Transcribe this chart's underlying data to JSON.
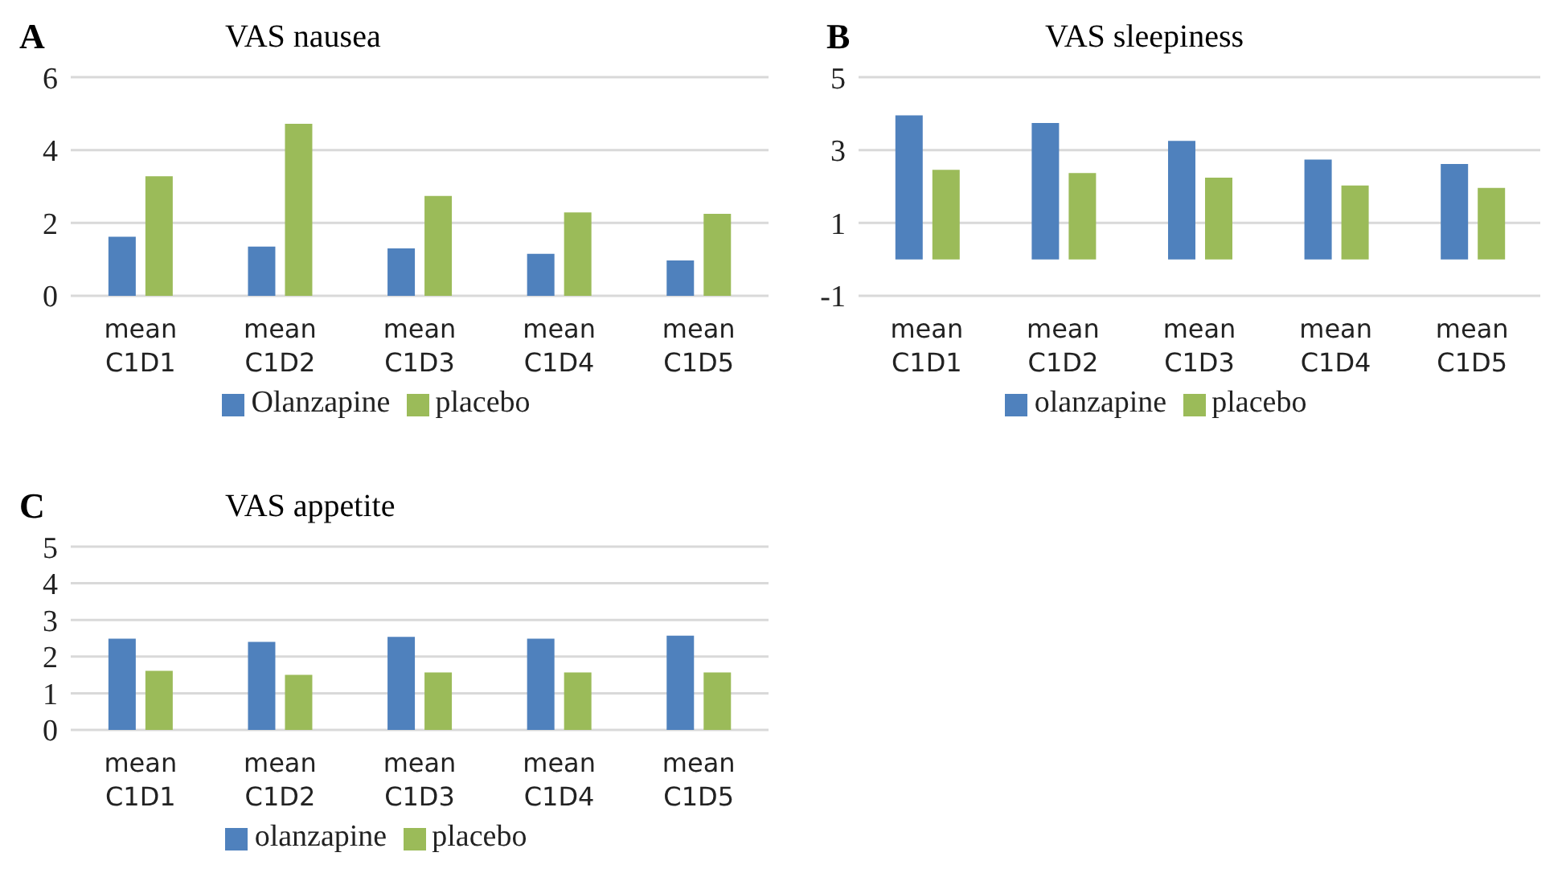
{
  "chart_data": [
    {
      "type": "bar",
      "title": "VAS nausea",
      "annotations": [
        "A"
      ],
      "categories": [
        "mean C1D1",
        "mean C1D2",
        "mean C1D3",
        "mean C1D4",
        "mean C1D5"
      ],
      "series": [
        {
          "name": "Olanzapine",
          "color": "#4f81bd",
          "values": [
            1.62,
            1.35,
            1.3,
            1.15,
            0.97
          ]
        },
        {
          "name": "placebo",
          "color": "#9bbb59",
          "values": [
            3.28,
            4.72,
            2.74,
            2.29,
            2.25
          ]
        }
      ],
      "ylim": [
        0,
        6
      ],
      "yticks": [
        0,
        2,
        4,
        6
      ],
      "grid": "y",
      "legend": "bottom"
    },
    {
      "type": "bar",
      "title": "VAS sleepiness",
      "annotations": [
        "B"
      ],
      "categories": [
        "mean C1D1",
        "mean C1D2",
        "mean C1D3",
        "mean C1D4",
        "mean C1D5"
      ],
      "series": [
        {
          "name": "olanzapine",
          "color": "#4f81bd",
          "values": [
            3.95,
            3.74,
            3.25,
            2.74,
            2.62
          ]
        },
        {
          "name": "placebo",
          "color": "#9bbb59",
          "values": [
            2.46,
            2.37,
            2.24,
            2.03,
            1.96
          ]
        }
      ],
      "ylim": [
        -1,
        5
      ],
      "yticks": [
        -1,
        1,
        3,
        5
      ],
      "grid": "y",
      "legend": "bottom"
    },
    {
      "type": "bar",
      "title": "VAS appetite",
      "annotations": [
        "C"
      ],
      "categories": [
        "mean C1D1",
        "mean C1D2",
        "mean C1D3",
        "mean C1D4",
        "mean C1D5"
      ],
      "series": [
        {
          "name": "olanzapine",
          "color": "#4f81bd",
          "values": [
            2.49,
            2.4,
            2.54,
            2.49,
            2.57
          ]
        },
        {
          "name": "placebo",
          "color": "#9bbb59",
          "values": [
            1.61,
            1.5,
            1.57,
            1.57,
            1.57
          ]
        }
      ],
      "ylim": [
        0,
        5
      ],
      "yticks": [
        0,
        1,
        2,
        3,
        4,
        5
      ],
      "grid": "y",
      "legend": "bottom"
    }
  ]
}
